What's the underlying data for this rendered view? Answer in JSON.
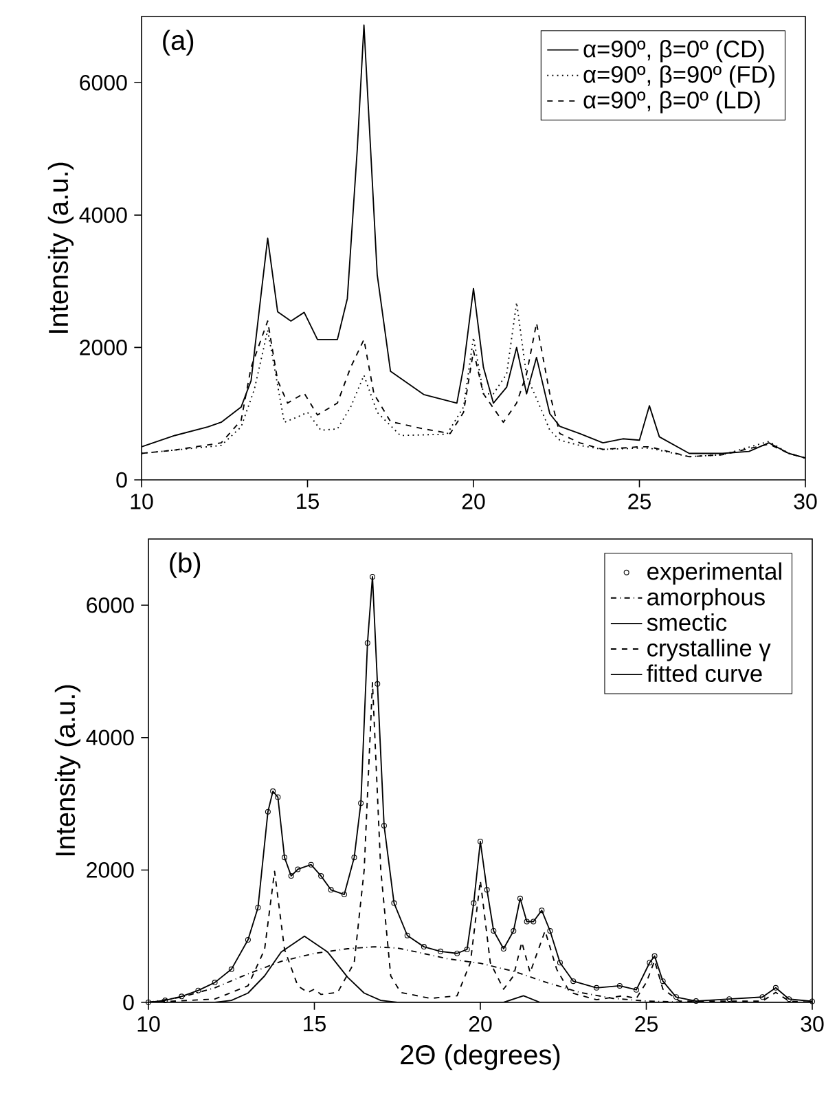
{
  "chart_data": [
    {
      "type": "line",
      "annotations": [
        "(a)"
      ],
      "ylabel": "Intensity (a.u.)",
      "xlim": [
        10,
        30
      ],
      "ylim": [
        0,
        7000
      ],
      "xticks": [
        10,
        15,
        20,
        25,
        30
      ],
      "yticks": [
        0,
        2000,
        4000,
        6000
      ],
      "legend": "top right",
      "marker": "none",
      "series": [
        {
          "name": "α=90º, β=0º (CD)",
          "color": "#000000",
          "line_style": "solid",
          "x": [
            10,
            11,
            12,
            12.4,
            13,
            13.3,
            13.6,
            13.8,
            14.1,
            14.5,
            14.9,
            15.3,
            15.9,
            16.2,
            16.5,
            16.7,
            16.9,
            17.1,
            17.5,
            18.5,
            19.5,
            19.7,
            20,
            20.3,
            20.6,
            21.0,
            21.3,
            21.6,
            21.9,
            22.3,
            22.6,
            23.2,
            23.9,
            24.5,
            25.0,
            25.3,
            25.6,
            26.5,
            27.5,
            28.3,
            28.9,
            29.5,
            30
          ],
          "values": [
            500,
            670,
            800,
            870,
            1100,
            1500,
            2800,
            3650,
            2540,
            2400,
            2530,
            2120,
            2120,
            2740,
            5000,
            6870,
            5000,
            3100,
            1640,
            1290,
            1160,
            1700,
            2890,
            1700,
            1160,
            1400,
            2000,
            1300,
            1850,
            1000,
            810,
            700,
            560,
            620,
            600,
            1120,
            650,
            400,
            400,
            430,
            560,
            400,
            330
          ]
        },
        {
          "name": "α=90º, β=90º (FD)",
          "color": "#000000",
          "line_style": "dotted",
          "x": [
            10,
            11,
            12.4,
            13,
            13.4,
            13.8,
            14.3,
            14.7,
            15.0,
            15.4,
            15.9,
            16.3,
            16.7,
            17.1,
            17.8,
            19.2,
            19.7,
            20,
            20.3,
            20.6,
            21.0,
            21.3,
            21.6,
            21.9,
            22.3,
            22.6,
            23.2,
            23.9,
            25,
            25.3,
            26.5,
            27.5,
            28.9,
            29.5,
            30
          ],
          "values": [
            400,
            450,
            520,
            800,
            1370,
            2260,
            870,
            950,
            1020,
            750,
            770,
            1100,
            1580,
            1020,
            670,
            690,
            1100,
            2150,
            1300,
            1300,
            1600,
            2680,
            1570,
            1230,
            750,
            600,
            520,
            460,
            480,
            480,
            350,
            380,
            580,
            400,
            330
          ]
        },
        {
          "name": "α=90º, β=0º (LD)",
          "color": "#000000",
          "line_style": "dashed",
          "x": [
            10,
            11,
            12.4,
            13,
            13.3,
            13.8,
            14.1,
            14.4,
            14.9,
            15.3,
            15.9,
            16.3,
            16.7,
            17,
            17.5,
            18.5,
            19.3,
            19.7,
            20,
            20.3,
            20.9,
            21.3,
            21.6,
            21.9,
            22.3,
            22.6,
            23.2,
            23.9,
            25,
            25.3,
            26.5,
            27.5,
            28.9,
            29.5,
            30
          ],
          "values": [
            400,
            450,
            560,
            900,
            1700,
            2400,
            1500,
            1160,
            1310,
            980,
            1160,
            1700,
            2120,
            1300,
            880,
            770,
            700,
            1020,
            1950,
            1300,
            870,
            1160,
            1600,
            2370,
            1300,
            700,
            560,
            460,
            500,
            500,
            350,
            380,
            540,
            400,
            330
          ]
        }
      ]
    },
    {
      "type": "line",
      "annotations": [
        "(b)"
      ],
      "xlabel": "2Θ (degrees)",
      "ylabel": "Intensity (a.u.)",
      "xlim": [
        10,
        30
      ],
      "ylim": [
        0,
        7000
      ],
      "xticks": [
        10,
        15,
        20,
        25,
        30
      ],
      "yticks": [
        0,
        2000,
        4000,
        6000
      ],
      "legend": "top right",
      "series": [
        {
          "name": "experimental",
          "type": "scatter",
          "marker": "circle",
          "color": "#000000",
          "x": [
            10,
            10.5,
            11,
            11.5,
            12,
            12.5,
            13,
            13.3,
            13.6,
            13.75,
            13.9,
            14.1,
            14.3,
            14.5,
            14.9,
            15.2,
            15.5,
            15.9,
            16.2,
            16.4,
            16.6,
            16.75,
            16.9,
            17.1,
            17.4,
            17.8,
            18.3,
            18.8,
            19.3,
            19.6,
            19.8,
            20.0,
            20.2,
            20.4,
            20.7,
            21.0,
            21.2,
            21.4,
            21.6,
            21.85,
            22.1,
            22.4,
            22.8,
            23.5,
            24.2,
            24.7,
            25.1,
            25.25,
            25.5,
            25.9,
            26.5,
            27.5,
            28.5,
            28.9,
            29.3,
            30
          ],
          "values": [
            0,
            30,
            90,
            180,
            300,
            500,
            945,
            1430,
            2880,
            3190,
            3100,
            2190,
            1910,
            2010,
            2080,
            1910,
            1700,
            1630,
            2190,
            3010,
            5430,
            6430,
            4810,
            2670,
            1500,
            1010,
            840,
            770,
            740,
            800,
            1500,
            2430,
            1700,
            1080,
            810,
            1080,
            1570,
            1220,
            1220,
            1390,
            1080,
            600,
            320,
            220,
            250,
            190,
            600,
            700,
            320,
            80,
            20,
            50,
            80,
            220,
            50,
            15
          ]
        },
        {
          "name": "amorphous",
          "color": "#000000",
          "line_style": "dashdot",
          "marker": "none",
          "x": [
            10,
            11,
            12,
            13,
            14,
            15,
            16,
            16.8,
            17.5,
            18,
            19,
            20,
            21,
            22,
            23,
            24,
            25,
            26,
            27,
            30
          ],
          "values": [
            0,
            80,
            220,
            430,
            620,
            740,
            810,
            840,
            820,
            770,
            660,
            590,
            470,
            300,
            150,
            60,
            20,
            5,
            0,
            0
          ]
        },
        {
          "name": "smectic",
          "color": "#000000",
          "line_style": "solid",
          "marker": "none",
          "x": [
            10,
            12,
            12.5,
            13,
            13.5,
            14,
            14.7,
            15.4,
            16,
            16.5,
            17,
            17.5,
            20.7,
            21.3,
            21.8,
            30
          ],
          "values": [
            0,
            0,
            30,
            140,
            400,
            760,
            1000,
            760,
            380,
            140,
            30,
            0,
            0,
            100,
            0,
            0
          ]
        },
        {
          "name": "crystalline γ",
          "color": "#000000",
          "line_style": "dashed",
          "marker": "none",
          "x": [
            10,
            12,
            13,
            13.5,
            13.8,
            14.1,
            14.5,
            14.8,
            15,
            15.2,
            15.7,
            16.2,
            16.5,
            16.75,
            17,
            17.3,
            17.6,
            18.5,
            19.3,
            19.7,
            20,
            20.3,
            20.7,
            21.0,
            21.25,
            21.5,
            21.95,
            22.3,
            22.7,
            23.5,
            24.3,
            24.7,
            25.0,
            25.25,
            25.5,
            26,
            28.5,
            28.9,
            29.3,
            30
          ],
          "values": [
            0,
            50,
            250,
            800,
            1980,
            800,
            250,
            150,
            200,
            120,
            150,
            600,
            2000,
            4830,
            2000,
            400,
            150,
            60,
            100,
            600,
            1840,
            600,
            200,
            400,
            910,
            450,
            1080,
            500,
            150,
            40,
            100,
            60,
            300,
            630,
            200,
            20,
            20,
            150,
            20,
            0
          ]
        },
        {
          "name": "fitted curve",
          "color": "#000000",
          "line_style": "solid",
          "marker": "none",
          "x": [
            10,
            10.5,
            11,
            11.5,
            12,
            12.5,
            13,
            13.3,
            13.6,
            13.75,
            13.9,
            14.1,
            14.3,
            14.5,
            14.9,
            15.2,
            15.5,
            15.9,
            16.2,
            16.4,
            16.6,
            16.75,
            16.9,
            17.1,
            17.4,
            17.8,
            18.3,
            18.8,
            19.3,
            19.6,
            19.8,
            20.0,
            20.2,
            20.4,
            20.7,
            21.0,
            21.2,
            21.4,
            21.6,
            21.85,
            22.1,
            22.4,
            22.8,
            23.5,
            24.2,
            24.7,
            25.1,
            25.25,
            25.5,
            25.9,
            26.5,
            27.5,
            28.5,
            28.9,
            29.3,
            30
          ],
          "values": [
            0,
            30,
            90,
            180,
            300,
            500,
            945,
            1430,
            2880,
            3190,
            3100,
            2190,
            1910,
            2010,
            2080,
            1910,
            1700,
            1630,
            2190,
            3010,
            5430,
            6430,
            4810,
            2670,
            1500,
            1010,
            840,
            770,
            740,
            800,
            1500,
            2430,
            1700,
            1080,
            810,
            1080,
            1570,
            1220,
            1220,
            1390,
            1080,
            600,
            320,
            220,
            250,
            190,
            600,
            700,
            320,
            80,
            20,
            50,
            80,
            220,
            50,
            15
          ]
        }
      ]
    }
  ]
}
